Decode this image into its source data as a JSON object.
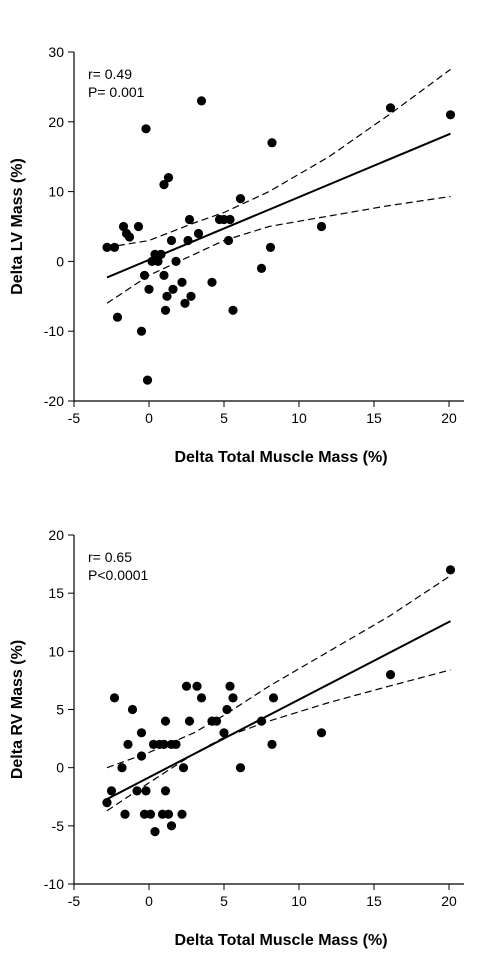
{
  "chart_data": [
    {
      "type": "scatter",
      "xlabel": "Delta Total Muscle Mass (%)",
      "ylabel": "Delta LV Mass (%)",
      "xlim": [
        -5,
        21
      ],
      "ylim": [
        -20,
        30
      ],
      "xticks": [
        -5,
        0,
        5,
        10,
        15,
        20
      ],
      "yticks": [
        -20,
        -10,
        0,
        10,
        20,
        30
      ],
      "annotation": [
        "r= 0.49",
        "P= 0.001"
      ],
      "points": [
        [
          -2.8,
          2
        ],
        [
          -2.3,
          2
        ],
        [
          -2.1,
          -8
        ],
        [
          -1.7,
          5
        ],
        [
          -1.5,
          4
        ],
        [
          -1.3,
          3.5
        ],
        [
          -0.7,
          5
        ],
        [
          -0.5,
          -10
        ],
        [
          -0.3,
          -2
        ],
        [
          -0.2,
          19
        ],
        [
          0,
          -4
        ],
        [
          -0.1,
          -17
        ],
        [
          0.2,
          0
        ],
        [
          0.4,
          1
        ],
        [
          0.6,
          0
        ],
        [
          0.8,
          1
        ],
        [
          1.0,
          -2
        ],
        [
          1.0,
          11
        ],
        [
          1.1,
          -7
        ],
        [
          1.2,
          -5
        ],
        [
          1.3,
          12
        ],
        [
          1.5,
          3
        ],
        [
          1.6,
          -4
        ],
        [
          1.8,
          0
        ],
        [
          2.2,
          -3
        ],
        [
          2.4,
          -6
        ],
        [
          2.6,
          3
        ],
        [
          2.7,
          6
        ],
        [
          2.8,
          -5
        ],
        [
          3.3,
          4
        ],
        [
          3.5,
          23
        ],
        [
          4.2,
          -3
        ],
        [
          4.7,
          6
        ],
        [
          5.0,
          6
        ],
        [
          5.3,
          3
        ],
        [
          5.4,
          6
        ],
        [
          5.6,
          -7
        ],
        [
          6.1,
          9
        ],
        [
          7.5,
          -1
        ],
        [
          8.2,
          17
        ],
        [
          8.1,
          2
        ],
        [
          11.5,
          5
        ],
        [
          16.1,
          22
        ],
        [
          20.1,
          21
        ]
      ],
      "regression": [
        [
          -2.8,
          -2.3
        ],
        [
          20.1,
          18.3
        ]
      ],
      "ci_upper": [
        [
          -2.8,
          2
        ],
        [
          0,
          3
        ],
        [
          3,
          5.5
        ],
        [
          5,
          7
        ],
        [
          8,
          10
        ],
        [
          12,
          15
        ],
        [
          16,
          21
        ],
        [
          20.1,
          27.5
        ]
      ],
      "ci_lower": [
        [
          -2.8,
          -6
        ],
        [
          0,
          -2
        ],
        [
          3,
          1
        ],
        [
          5,
          3
        ],
        [
          8,
          5
        ],
        [
          12,
          6.5
        ],
        [
          16,
          8
        ],
        [
          20.1,
          9.3
        ]
      ]
    },
    {
      "type": "scatter",
      "xlabel": "Delta Total Muscle Mass (%)",
      "ylabel": "Delta RV Mass (%)",
      "xlim": [
        -5,
        21
      ],
      "ylim": [
        -10,
        20
      ],
      "xticks": [
        -5,
        0,
        5,
        10,
        15,
        20
      ],
      "yticks": [
        -10,
        -5,
        0,
        5,
        10,
        15,
        20
      ],
      "annotation": [
        "r= 0.65",
        "P<0.0001"
      ],
      "points": [
        [
          -2.8,
          -3
        ],
        [
          -2.5,
          -2
        ],
        [
          -2.3,
          6
        ],
        [
          -1.8,
          0
        ],
        [
          -1.6,
          -4
        ],
        [
          -1.4,
          2
        ],
        [
          -1.1,
          5
        ],
        [
          -0.8,
          -2
        ],
        [
          -0.5,
          1
        ],
        [
          -0.5,
          3
        ],
        [
          -0.2,
          -2
        ],
        [
          -0.3,
          -4
        ],
        [
          0.1,
          -4
        ],
        [
          0.3,
          2
        ],
        [
          0.4,
          -5.5
        ],
        [
          0.7,
          2
        ],
        [
          0.9,
          -4
        ],
        [
          1.0,
          2
        ],
        [
          1.1,
          -2
        ],
        [
          1.1,
          4
        ],
        [
          1.3,
          -4
        ],
        [
          1.5,
          2
        ],
        [
          1.5,
          -5
        ],
        [
          1.8,
          2
        ],
        [
          2.2,
          -4
        ],
        [
          2.3,
          0
        ],
        [
          2.5,
          7
        ],
        [
          2.7,
          4
        ],
        [
          3.2,
          7
        ],
        [
          3.5,
          6
        ],
        [
          4.2,
          4
        ],
        [
          4.5,
          4
        ],
        [
          5.0,
          3
        ],
        [
          5.2,
          5
        ],
        [
          5.4,
          7
        ],
        [
          5.6,
          6
        ],
        [
          6.1,
          0
        ],
        [
          7.5,
          4
        ],
        [
          8.2,
          2
        ],
        [
          8.3,
          6
        ],
        [
          11.5,
          3
        ],
        [
          16.1,
          8
        ],
        [
          20.1,
          17
        ]
      ],
      "regression": [
        [
          -2.8,
          -2.7
        ],
        [
          20.1,
          12.6
        ]
      ],
      "ci_upper": [
        [
          -2.8,
          0
        ],
        [
          0,
          1.3
        ],
        [
          3,
          3
        ],
        [
          5,
          4.5
        ],
        [
          8,
          7
        ],
        [
          12,
          10
        ],
        [
          16,
          13
        ],
        [
          20.1,
          16.5
        ]
      ],
      "ci_lower": [
        [
          -2.8,
          -3.7
        ],
        [
          0,
          -1.3
        ],
        [
          3,
          1.2
        ],
        [
          5,
          2.6
        ],
        [
          8,
          4
        ],
        [
          12,
          5.6
        ],
        [
          16,
          7
        ],
        [
          20.1,
          8.4
        ]
      ]
    }
  ]
}
